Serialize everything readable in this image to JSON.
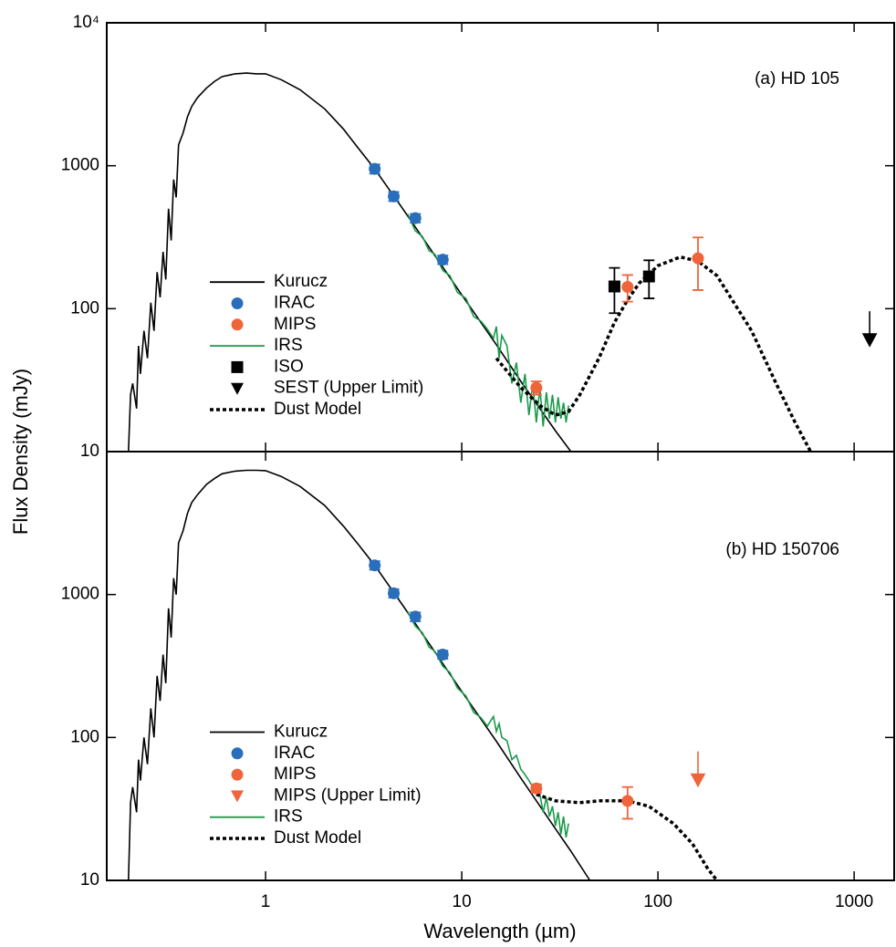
{
  "xlabel": "Wavelength (µm)",
  "ylabel": "Flux Density (mJy)",
  "chart_data": [
    {
      "type": "sed",
      "annotation": "(a) HD 105",
      "log_x": true,
      "log_y": true,
      "legend": "lower left",
      "xlim": [
        0.155,
        1600
      ],
      "ylim": [
        10,
        10000
      ],
      "xticks": [
        1,
        10,
        100,
        1000
      ],
      "yticks": [
        10,
        100,
        1000,
        {
          "value": 10000,
          "label": "10⁴"
        }
      ],
      "series": [
        {
          "name": "Kurucz",
          "color": "#000000",
          "style": "line",
          "x": [
            0.2,
            0.205,
            0.21,
            0.22,
            0.225,
            0.23,
            0.24,
            0.25,
            0.26,
            0.27,
            0.28,
            0.29,
            0.3,
            0.31,
            0.32,
            0.33,
            0.34,
            0.35,
            0.36,
            0.38,
            0.4,
            0.42,
            0.45,
            0.5,
            0.55,
            0.6,
            0.7,
            0.8,
            0.9,
            1.0,
            1.2,
            1.5,
            2,
            2.5,
            3,
            3.6,
            5,
            7,
            10,
            15,
            20,
            30,
            36
          ],
          "values": [
            10,
            25,
            30,
            20,
            55,
            35,
            70,
            45,
            110,
            70,
            180,
            120,
            250,
            160,
            500,
            300,
            800,
            600,
            1400,
            1700,
            2200,
            2600,
            3000,
            3500,
            3900,
            4200,
            4400,
            4450,
            4400,
            4400,
            4000,
            3400,
            2500,
            1800,
            1300,
            950,
            500,
            255,
            125,
            56,
            31,
            14,
            10
          ]
        },
        {
          "name": "IRAC",
          "color": "#2a6ebb",
          "style": "points",
          "x": [
            3.6,
            4.5,
            5.8,
            8.0
          ],
          "values": [
            950,
            610,
            430,
            220
          ],
          "errors": [
            70,
            45,
            30,
            15
          ]
        },
        {
          "name": "MIPS",
          "color": "#f0643a",
          "style": "points",
          "x": [
            24,
            70,
            160
          ],
          "values": [
            28,
            142,
            225
          ],
          "errors": [
            3,
            30,
            90
          ]
        },
        {
          "name": "IRS",
          "color": "#1a9a4a",
          "style": "line",
          "x": [
            5.3,
            5.8,
            6.3,
            6.8,
            7.3,
            8,
            8.7,
            9.5,
            10.5,
            11.5,
            12.5,
            13.5,
            14.5,
            15,
            15.5,
            16,
            17,
            18,
            19,
            20,
            21,
            22,
            23,
            24,
            25,
            26,
            27,
            28,
            29,
            30,
            31,
            32,
            33,
            34,
            35
          ],
          "values": [
            460,
            350,
            320,
            255,
            240,
            185,
            170,
            130,
            118,
            88,
            82,
            72,
            62,
            75,
            45,
            65,
            55,
            30,
            42,
            22,
            35,
            18,
            30,
            16,
            28,
            15,
            26,
            17,
            25,
            16,
            24,
            17,
            22,
            16,
            21
          ]
        },
        {
          "name": "ISO",
          "color": "#000000",
          "style": "squares",
          "x": [
            60,
            90
          ],
          "values": [
            143,
            168
          ],
          "errors": [
            50,
            50
          ]
        },
        {
          "name": "SEST (Upper Limit)",
          "color": "#000000",
          "style": "upper_limit",
          "x": [
            1200
          ],
          "values": [
            60
          ]
        },
        {
          "name": "Dust Model",
          "color": "#000000",
          "style": "dotted",
          "x": [
            15,
            20,
            25,
            30,
            35,
            40,
            50,
            60,
            70,
            80,
            100,
            130,
            160,
            200,
            300,
            400,
            500,
            600
          ],
          "values": [
            45,
            28,
            21,
            18,
            19,
            25,
            45,
            80,
            115,
            150,
            200,
            230,
            215,
            170,
            70,
            30,
            16,
            10
          ]
        }
      ]
    },
    {
      "type": "sed",
      "annotation": "(b) HD 150706",
      "log_x": true,
      "log_y": true,
      "legend": "lower left",
      "xlim": [
        0.155,
        1600
      ],
      "ylim": [
        10,
        10000
      ],
      "xticks": [
        1,
        10,
        100,
        1000
      ],
      "yticks": [
        10,
        100,
        1000
      ],
      "series": [
        {
          "name": "Kurucz",
          "color": "#000000",
          "style": "line",
          "x": [
            0.2,
            0.205,
            0.21,
            0.22,
            0.225,
            0.23,
            0.24,
            0.25,
            0.26,
            0.27,
            0.28,
            0.29,
            0.3,
            0.31,
            0.32,
            0.33,
            0.34,
            0.35,
            0.36,
            0.38,
            0.4,
            0.42,
            0.45,
            0.5,
            0.55,
            0.6,
            0.7,
            0.8,
            0.9,
            1.0,
            1.2,
            1.5,
            2,
            2.5,
            3,
            3.6,
            5,
            7,
            10,
            15,
            20,
            30,
            36,
            45
          ],
          "values": [
            10,
            35,
            45,
            30,
            70,
            50,
            100,
            65,
            160,
            100,
            270,
            180,
            380,
            240,
            800,
            500,
            1300,
            1000,
            2300,
            2800,
            3700,
            4400,
            5000,
            5900,
            6500,
            7000,
            7300,
            7400,
            7400,
            7350,
            6700,
            5700,
            4200,
            3000,
            2200,
            1600,
            840,
            430,
            210,
            94,
            52,
            23,
            16,
            10
          ]
        },
        {
          "name": "IRAC",
          "color": "#2a6ebb",
          "style": "points",
          "x": [
            3.6,
            4.5,
            5.8,
            8.0
          ],
          "values": [
            1600,
            1020,
            700,
            380
          ],
          "errors": [
            110,
            70,
            50,
            25
          ]
        },
        {
          "name": "MIPS",
          "color": "#f0643a",
          "style": "points",
          "x": [
            24,
            70
          ],
          "values": [
            44,
            36
          ],
          "errors": [
            3,
            9
          ]
        },
        {
          "name": "MIPS (Upper Limit)",
          "color": "#f0643a",
          "style": "upper_limit",
          "x": [
            160
          ],
          "values": [
            50
          ]
        },
        {
          "name": "IRS",
          "color": "#1a9a4a",
          "style": "line",
          "x": [
            5.3,
            5.8,
            6.3,
            6.8,
            7.3,
            8,
            8.7,
            9.5,
            10.5,
            11.5,
            12.5,
            13.5,
            14.5,
            15,
            15.5,
            16,
            17,
            18,
            19,
            20,
            21,
            22,
            23,
            24,
            25,
            26,
            27,
            28,
            29,
            30,
            31,
            32,
            33,
            34,
            35
          ],
          "values": [
            760,
            600,
            540,
            430,
            400,
            315,
            285,
            222,
            195,
            150,
            138,
            120,
            140,
            110,
            125,
            100,
            95,
            70,
            75,
            60,
            55,
            50,
            45,
            42,
            40,
            30,
            38,
            28,
            33,
            24,
            30,
            21,
            28,
            20,
            25
          ]
        },
        {
          "name": "Dust Model",
          "color": "#000000",
          "style": "dotted",
          "x": [
            24,
            30,
            40,
            50,
            70,
            90,
            120,
            150,
            180,
            200
          ],
          "values": [
            40,
            36,
            35,
            36,
            36,
            33,
            25,
            18,
            12,
            10
          ]
        }
      ]
    }
  ]
}
